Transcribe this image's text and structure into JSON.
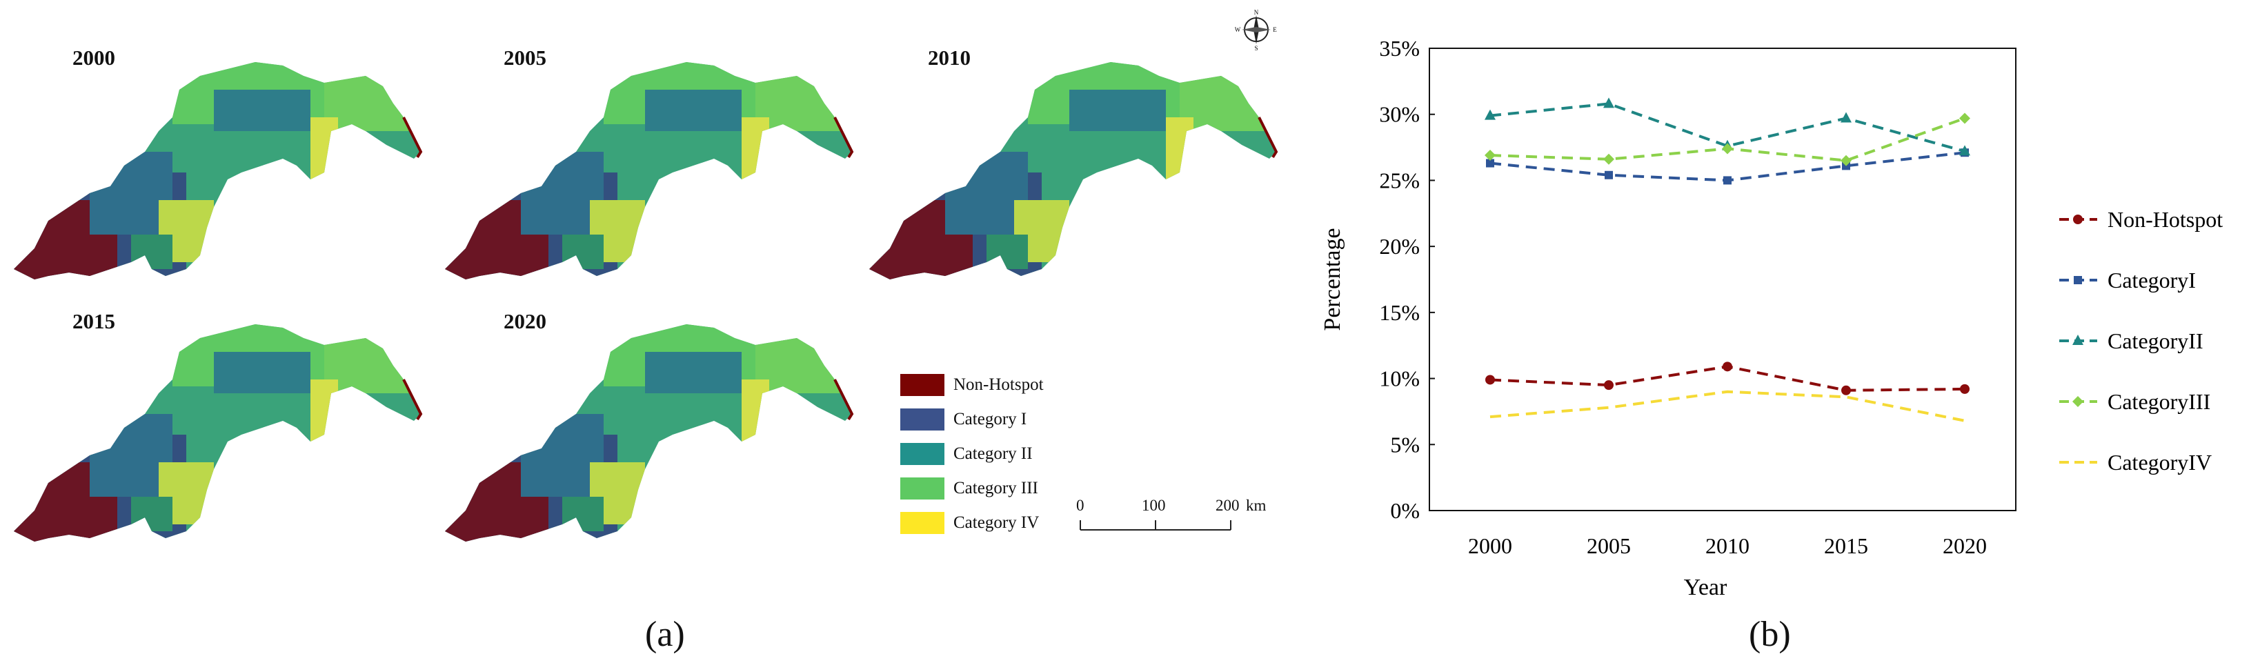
{
  "panel_a": {
    "label": "(a)",
    "years": [
      "2000",
      "2005",
      "2010",
      "2015",
      "2020"
    ],
    "legend": [
      {
        "label": "Non-Hotspot",
        "color": "#7a0403"
      },
      {
        "label": "Category I",
        "color": "#3b528b"
      },
      {
        "label": "Category II",
        "color": "#21918c"
      },
      {
        "label": "Category III",
        "color": "#5ec962"
      },
      {
        "label": "Category IV",
        "color": "#fde725"
      }
    ],
    "scale_bar": {
      "ticks": [
        "0",
        "100",
        "200"
      ],
      "unit": "km"
    },
    "compass": {
      "n": "N",
      "s": "S",
      "e": "E",
      "w": "W"
    }
  },
  "panel_b": {
    "label": "(b)"
  },
  "chart_data": {
    "type": "line",
    "categories": [
      "2000",
      "2005",
      "2010",
      "2015",
      "2020"
    ],
    "xlabel": "Year",
    "ylabel": "Percentage",
    "ylim": [
      0,
      35
    ],
    "yticks": [
      "0%",
      "5%",
      "10%",
      "15%",
      "20%",
      "25%",
      "30%",
      "35%"
    ],
    "legend_position": "right",
    "grid": false,
    "series": [
      {
        "name": "Non-Hotspot",
        "color": "#8b0c0c",
        "marker": "circle",
        "values": [
          9.9,
          9.5,
          10.9,
          9.1,
          9.2
        ]
      },
      {
        "name": "CategoryI",
        "color": "#2e5597",
        "marker": "square",
        "values": [
          26.3,
          25.4,
          25.0,
          26.1,
          27.1
        ]
      },
      {
        "name": "CategoryII",
        "color": "#1e8583",
        "marker": "triangle",
        "values": [
          29.9,
          30.8,
          27.6,
          29.7,
          27.2
        ]
      },
      {
        "name": "CategoryIII",
        "color": "#8cd14a",
        "marker": "diamond",
        "values": [
          26.9,
          26.6,
          27.4,
          26.5,
          29.7
        ]
      },
      {
        "name": "CategoryIV",
        "color": "#f5da36",
        "marker": "none",
        "values": [
          7.1,
          7.8,
          9.0,
          8.6,
          6.8
        ]
      }
    ]
  }
}
